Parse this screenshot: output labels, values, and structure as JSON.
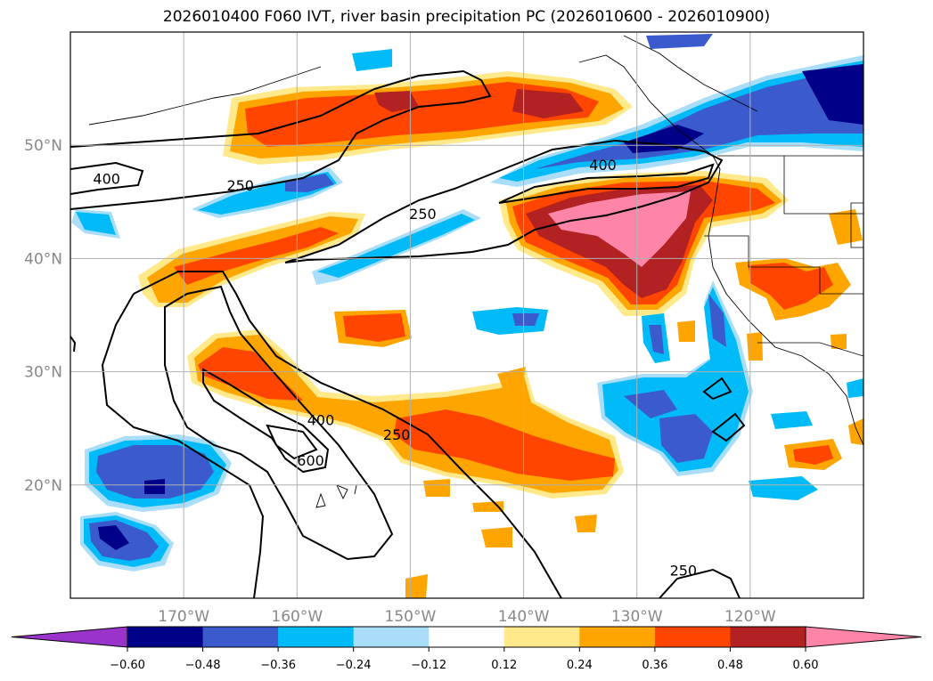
{
  "title": "2026010400 F060 IVT, river basin precipitation PC (2026010600 - 2026010900)",
  "map": {
    "lon_range": [
      -180,
      -110
    ],
    "lat_range": [
      10,
      60
    ],
    "lon_labels": [
      {
        "value": -170,
        "label": "170°W"
      },
      {
        "value": -160,
        "label": "160°W"
      },
      {
        "value": -150,
        "label": "150°W"
      },
      {
        "value": -140,
        "label": "140°W"
      },
      {
        "value": -130,
        "label": "130°W"
      },
      {
        "value": -120,
        "label": "120°W"
      }
    ],
    "lat_labels": [
      {
        "value": 50,
        "label": "50°N"
      },
      {
        "value": 40,
        "label": "40°N"
      },
      {
        "value": 30,
        "label": "30°N"
      },
      {
        "value": 20,
        "label": "20°N"
      }
    ],
    "grid": true,
    "contour_labels": [
      {
        "text": "400",
        "lon": -176.8,
        "lat": 47.0
      },
      {
        "text": "250",
        "lon": -165.0,
        "lat": 46.4
      },
      {
        "text": "250",
        "lon": -148.9,
        "lat": 43.9
      },
      {
        "text": "400",
        "lon": -133.0,
        "lat": 48.2
      },
      {
        "text": "400",
        "lon": -157.9,
        "lat": 25.7
      },
      {
        "text": "250",
        "lon": -151.2,
        "lat": 24.4
      },
      {
        "text": "600",
        "lon": -158.8,
        "lat": 22.1
      },
      {
        "text": "250",
        "lon": -125.9,
        "lat": 12.4
      }
    ]
  },
  "colorbar": {
    "ticks": [
      "−0.60",
      "−0.48",
      "−0.36",
      "−0.24",
      "−0.12",
      "0.12",
      "0.24",
      "0.36",
      "0.48",
      "0.60"
    ],
    "colors": [
      "#9933cc",
      "#000088",
      "#3b5bcc",
      "#00bbf7",
      "#aadef8",
      "#ffffff",
      "#ffe98a",
      "#ffa500",
      "#ff4500",
      "#b22222",
      "#ff85a8"
    ]
  }
}
